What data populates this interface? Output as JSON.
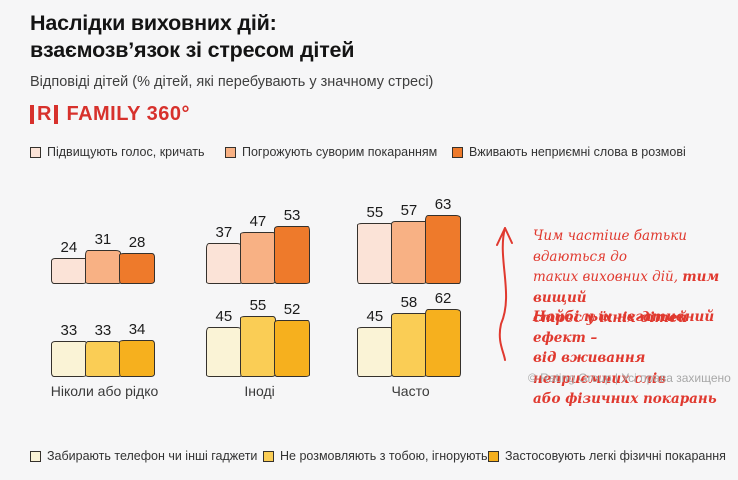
{
  "page": {
    "title_line1": "Наслідки виховних дій:",
    "title_line2": "взаємозв’язок зі стресом дітей",
    "subtitle": "Відповіді дітей (% дітей, які перебувають у значному стресі)",
    "logo": {
      "letter": "R",
      "brand": "FAMILY 360°",
      "color": "#D7312C"
    },
    "copyright": "© Rating Group | Усі права захищено"
  },
  "annotations": {
    "note1_line1": "Чим частіше батьки вдаються до",
    "note1_line2_normal": "таких виховних дій, ",
    "note1_line2_bold": "тим вищий",
    "note1_line3_bold": "стрес у їхніх дітей",
    "note2_line1": "Найбільш негативний ефект –",
    "note2_line2": "від вживання неприємних слів",
    "note2_line3": "або фізичних покарань",
    "arrow_color": "#E0392F"
  },
  "chart_data": {
    "type": "bar",
    "title": "Наслідки виховних дій: взаємозв’язок зі стресом дітей",
    "subtitle": "Відповіді дітей (% дітей, які перебувають у значному стресі)",
    "categories": [
      "Ніколи або рідко",
      "Іноді",
      "Часто"
    ],
    "unit": "%",
    "ylim": [
      0,
      70
    ],
    "grid": false,
    "outline_color": "#35312C",
    "rows": [
      {
        "position": "top",
        "legend_position": "above",
        "series": [
          {
            "name": "Підвищують голос, кричать",
            "color": "#FBE3D7",
            "values": [
              24,
              37,
              55
            ]
          },
          {
            "name": "Погрожують суворим покаранням",
            "color": "#F8B184",
            "values": [
              31,
              47,
              57
            ]
          },
          {
            "name": "Вживають неприємні слова в розмові",
            "color": "#EE7A2B",
            "values": [
              28,
              53,
              63
            ]
          }
        ]
      },
      {
        "position": "bottom",
        "legend_position": "below",
        "series": [
          {
            "name": "Забирають телефон чи інші гаджети",
            "color": "#FAF3D6",
            "values": [
              33,
              45,
              45
            ]
          },
          {
            "name": "Не розмовляють з тобою, ігнорують",
            "color": "#FACD55",
            "values": [
              33,
              55,
              58
            ]
          },
          {
            "name": "Застосовують легкі фізичні покарання",
            "color": "#F6B01E",
            "values": [
              34,
              52,
              62
            ]
          }
        ]
      }
    ]
  }
}
